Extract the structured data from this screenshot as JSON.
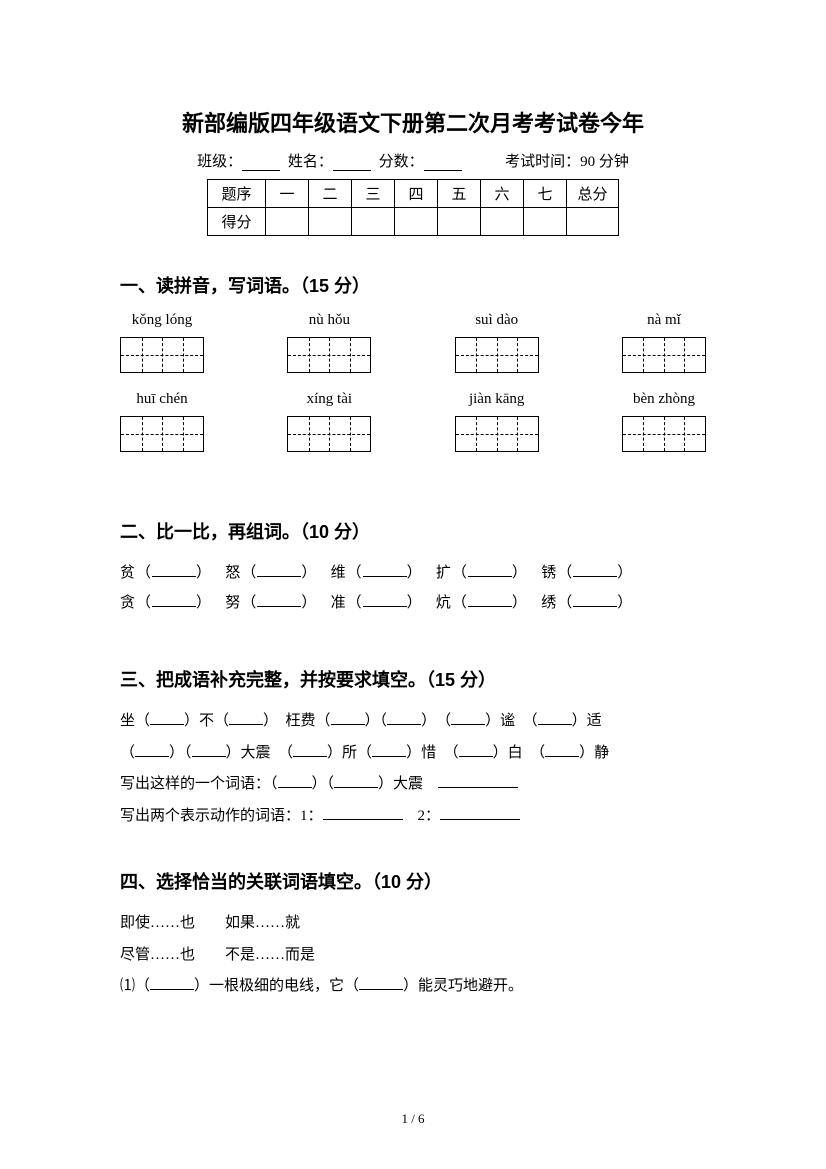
{
  "title": "新部编版四年级语文下册第二次月考考试卷今年",
  "info": {
    "class_label": "班级：",
    "name_label": "姓名：",
    "score_label": "分数：",
    "exam_time": "考试时间：90 分钟"
  },
  "score_table": {
    "row1": [
      "题序",
      "一",
      "二",
      "三",
      "四",
      "五",
      "六",
      "七",
      "总分"
    ],
    "row2_label": "得分"
  },
  "section1": {
    "heading": "一、读拼音，写词语。（15 分）",
    "row1": [
      "kǒng lóng",
      "nù hǒu",
      "suì dào",
      "nà mǐ"
    ],
    "row2": [
      "huī chén",
      "xíng tài",
      "jiàn kāng",
      "bèn zhòng"
    ]
  },
  "section2": {
    "heading": "二、比一比，再组词。（10 分）",
    "pairs": [
      [
        "贫",
        "怒",
        "维",
        "扩",
        "锈"
      ],
      [
        "贪",
        "努",
        "准",
        "炕",
        "绣"
      ]
    ]
  },
  "section3": {
    "heading": "三、把成语补充完整，并按要求填空。（15 分）",
    "line1_a": "坐（",
    "line1_b": "）不（",
    "line1_c": "）　枉费（",
    "line1_d": "）（",
    "line1_e": "）　（",
    "line1_f": "）谧　（",
    "line1_g": "）适",
    "line2_a": "（",
    "line2_b": "）（",
    "line2_c": "）大震　（",
    "line2_d": "）所（",
    "line2_e": "）惜　（",
    "line2_f": "）白　（",
    "line2_g": "）静",
    "line3_a": "写出这样的一个词语：（",
    "line3_b": "）（",
    "line3_c": "）大震　",
    "line4_a": "写出两个表示动作的词语：1：",
    "line4_b": "2："
  },
  "section4": {
    "heading": "四、选择恰当的关联词语填空。（10 分）",
    "opt1": "即使……也　　如果……就",
    "opt2": "尽管……也　　不是……而是",
    "q1_a": "⑴（",
    "q1_b": "）一根极细的电线，它（",
    "q1_c": "）能灵巧地避开。"
  },
  "page_number": "1 / 6"
}
